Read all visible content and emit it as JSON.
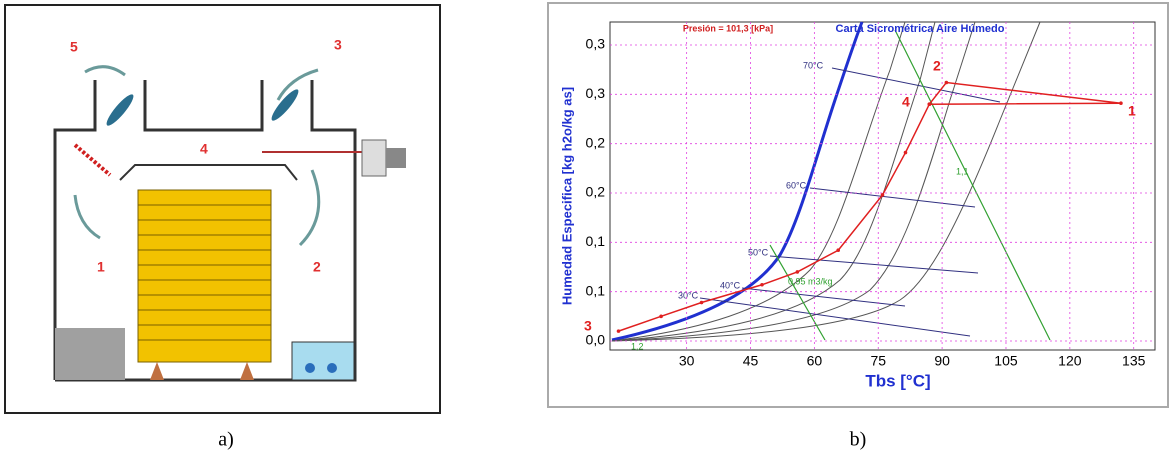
{
  "diagram": {
    "labels": [
      "5",
      "3",
      "4",
      "1",
      "2"
    ]
  },
  "captions": [
    "a)",
    "b)"
  ],
  "chart_data": {
    "type": "line",
    "title": "Carta Sicrométrica Aire Húmedo",
    "annotation": "Presión = 101,3 [kPa]",
    "x_label": "Tbs [°C]",
    "y_label": "Humedad Especifica [kg h2o/kg as]",
    "xlim": [
      12,
      140
    ],
    "xticks": [
      30,
      45,
      60,
      75,
      90,
      105,
      120,
      135
    ],
    "ylim": [
      0,
      0.3
    ],
    "yticks": [
      {
        "value": 0,
        "label": "0,0"
      },
      {
        "value": 0.05,
        "label": "0,1"
      },
      {
        "value": 0.1,
        "label": "0,1"
      },
      {
        "value": 0.15,
        "label": "0,2"
      },
      {
        "value": 0.2,
        "label": "0,2"
      },
      {
        "value": 0.25,
        "label": "0,3"
      },
      {
        "value": 0.3,
        "label": "0,3"
      }
    ],
    "grid": true,
    "series": [
      {
        "color": "#e02020",
        "x": [
          14,
          24,
          33.5,
          47.7,
          56,
          65.6,
          76,
          81.4,
          87,
          132,
          91,
          87
        ],
        "values": [
          0.01,
          0.025,
          0.039,
          0.057,
          0.07,
          0.092,
          0.148,
          0.191,
          0.24,
          0.241,
          0.262,
          0.24
        ]
      }
    ],
    "point_labels": [
      "1",
      "2",
      "3",
      "4"
    ],
    "temperature_labels": [
      "70°C",
      "60°C",
      "50°C",
      "40°C",
      "30°C"
    ],
    "volume_labels": [
      "0,95 m3/kg",
      "1,1",
      "1,2"
    ]
  }
}
